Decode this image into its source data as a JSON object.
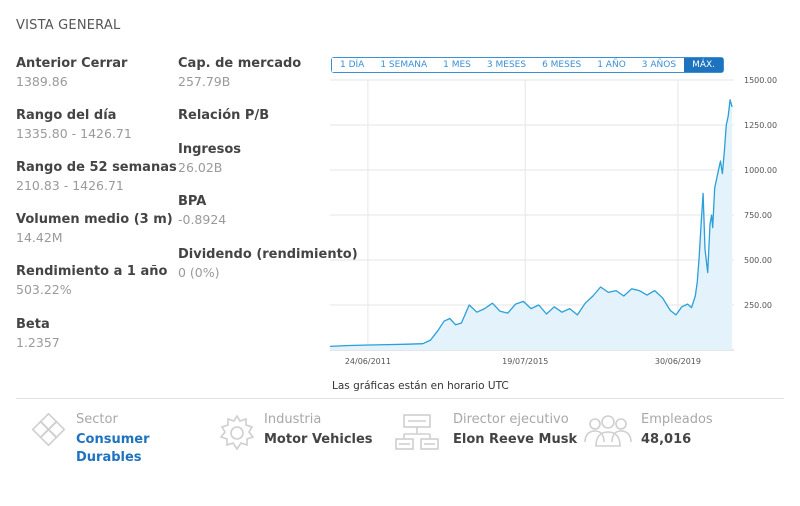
{
  "section_title": "VISTA GENERAL",
  "stats_left": [
    {
      "label": "Anterior Cerrar",
      "value": "1389.86"
    },
    {
      "label": "Rango del día",
      "value": "1335.80 - 1426.71"
    },
    {
      "label": "Rango de 52 semanas",
      "value": "210.83 - 1426.71"
    },
    {
      "label": "Volumen medio (3 m)",
      "value": "14.42M"
    },
    {
      "label": "Rendimiento a 1 año",
      "value": "503.22%"
    },
    {
      "label": "Beta",
      "value": "1.2357"
    }
  ],
  "stats_right": [
    {
      "label": "Cap. de mercado",
      "value": "257.79B"
    },
    {
      "label": "Relación P/B",
      "value": ""
    },
    {
      "label": "Ingresos",
      "value": "26.02B"
    },
    {
      "label": "BPA",
      "value": "-0.8924"
    },
    {
      "label": "Dividendo (rendimiento)",
      "value": "0 (0%)"
    }
  ],
  "range_buttons": [
    "1 DÍA",
    "1 SEMANA",
    "1 MES",
    "3 MESES",
    "6 MESES",
    "1 AÑO",
    "3 AÑOS",
    "MÁX."
  ],
  "active_range": "MÁX.",
  "chart_note": "Las gráficas están en horario UTC",
  "chart_data": {
    "type": "area",
    "title": "",
    "xlabel": "",
    "ylabel": "",
    "x_ticks": [
      "24/06/2011",
      "19/07/2015",
      "30/06/2019"
    ],
    "y_ticks": [
      "250.00",
      "500.00",
      "750.00",
      "1000.00",
      "1250.00",
      "1500.00"
    ],
    "ylim": [
      0,
      1500
    ],
    "xlim": [
      2010.5,
      2020.95
    ],
    "grid": true,
    "colors": {
      "line": "#2a9fd8",
      "fill": "#e3f2fb",
      "grid": "#e6e6e6"
    },
    "x": [
      2010.5,
      2011.0,
      2011.5,
      2012.0,
      2012.5,
      2012.9,
      2013.1,
      2013.3,
      2013.45,
      2013.6,
      2013.75,
      2013.9,
      2014.1,
      2014.3,
      2014.5,
      2014.7,
      2014.9,
      2015.1,
      2015.3,
      2015.5,
      2015.7,
      2015.9,
      2016.1,
      2016.3,
      2016.5,
      2016.7,
      2016.9,
      2017.1,
      2017.3,
      2017.5,
      2017.7,
      2017.9,
      2018.1,
      2018.3,
      2018.5,
      2018.7,
      2018.9,
      2019.1,
      2019.3,
      2019.45,
      2019.6,
      2019.75,
      2019.85,
      2019.95,
      2020.0,
      2020.05,
      2020.1,
      2020.15,
      2020.2,
      2020.27,
      2020.33,
      2020.37,
      2020.4,
      2020.45,
      2020.5,
      2020.55,
      2020.6,
      2020.65,
      2020.7,
      2020.75,
      2020.8,
      2020.85,
      2020.9
    ],
    "values": [
      20,
      25,
      28,
      30,
      32,
      35,
      55,
      110,
      160,
      175,
      140,
      150,
      250,
      210,
      230,
      260,
      215,
      205,
      255,
      270,
      230,
      250,
      200,
      240,
      210,
      230,
      195,
      260,
      300,
      350,
      320,
      330,
      300,
      340,
      330,
      305,
      330,
      290,
      220,
      195,
      240,
      255,
      235,
      300,
      380,
      520,
      700,
      870,
      560,
      430,
      700,
      750,
      680,
      900,
      950,
      1000,
      1050,
      980,
      1100,
      1250,
      1300,
      1390,
      1350
    ]
  },
  "info": [
    {
      "label": "Sector",
      "value": "Consumer Durables",
      "icon": "diamond-grid-icon"
    },
    {
      "label": "Industria",
      "value": "Motor Vehicles",
      "icon": "gear-icon"
    },
    {
      "label": "Director ejecutivo",
      "value": "Elon Reeve Musk",
      "icon": "org-chart-icon"
    },
    {
      "label": "Empleados",
      "value": "48,016",
      "icon": "people-icon"
    }
  ]
}
